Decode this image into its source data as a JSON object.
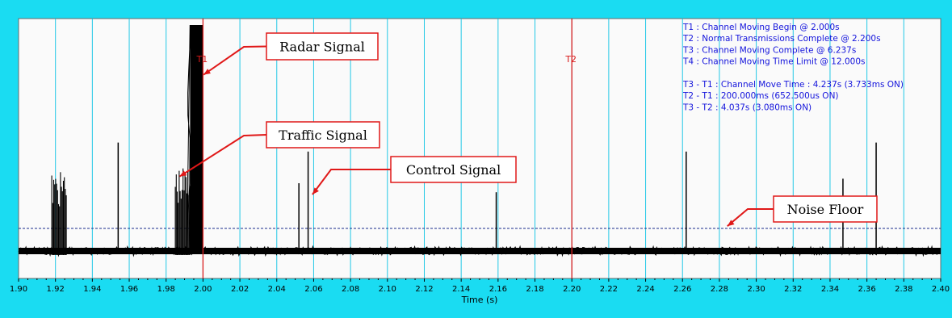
{
  "chart_data": {
    "type": "line",
    "xlabel": "Time (s)",
    "xlim": [
      1.9,
      2.4
    ],
    "x_ticks": [
      "1.90",
      "1.92",
      "1.94",
      "1.96",
      "1.98",
      "2.00",
      "2.02",
      "2.04",
      "2.06",
      "2.08",
      "2.10",
      "2.12",
      "2.14",
      "2.16",
      "2.18",
      "2.20",
      "2.22",
      "2.24",
      "2.26",
      "2.28",
      "2.30",
      "2.32",
      "2.34",
      "2.36",
      "2.38",
      "2.40"
    ],
    "grid": true,
    "noise_floor_level": 0.1,
    "y_range": [
      0,
      1
    ],
    "markers": [
      {
        "label": "T1",
        "x": 2.0
      },
      {
        "label": "T2",
        "x": 2.2
      }
    ],
    "info_lines": [
      "T1 : Channel Moving Begin @ 2.000s",
      "T2 : Normal Transmissions Complete @ 2.200s",
      "T3 : Channel Moving Complete @ 6.237s",
      "T4 : Channel Moving Time Limit @ 12.000s",
      "",
      "T3 - T1 : Channel Move Time : 4.237s (3.733ms ON)",
      "T2 - T1 : 200.000ms (652.500us ON)",
      "T3 - T2 : 4.037s (3.080ms ON)"
    ],
    "bursts": [
      {
        "x_start": 1.918,
        "x_end": 1.926,
        "level": 0.35
      },
      {
        "x_start": 1.985,
        "x_end": 1.993,
        "level": 0.37
      },
      {
        "x_start": 1.993,
        "x_end": 2.0,
        "level": 1.0
      }
    ],
    "spikes": [
      {
        "x": 1.954,
        "level": 0.48
      },
      {
        "x": 2.052,
        "level": 0.3
      },
      {
        "x": 2.057,
        "level": 0.44
      },
      {
        "x": 2.159,
        "level": 0.26
      },
      {
        "x": 2.262,
        "level": 0.44
      },
      {
        "x": 2.347,
        "level": 0.32
      },
      {
        "x": 2.365,
        "level": 0.48
      }
    ],
    "annotations": [
      {
        "text": "Radar Signal",
        "target_x": 1.999,
        "target_level": 0.78
      },
      {
        "text": "Traffic Signal",
        "target_x": 1.986,
        "target_level": 0.33
      },
      {
        "text": "Control Signal",
        "target_x": 2.058,
        "target_level": 0.25
      },
      {
        "text": "Noise Floor",
        "target_x": 2.283,
        "target_level": 0.11
      }
    ]
  }
}
